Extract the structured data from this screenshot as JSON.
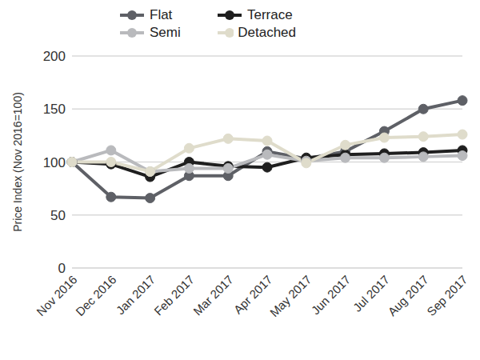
{
  "chart_data": {
    "type": "line",
    "y_label": "Price Index (Nov 2016=100)",
    "categories": [
      "Nov 2016",
      "Dec 2016",
      "Jan 2017",
      "Feb 2017",
      "Mar 2017",
      "Apr 2017",
      "May 2017",
      "Jun 2017",
      "Jul 2017",
      "Aug 2017",
      "Sep 2017"
    ],
    "series": [
      {
        "name": "Flat",
        "color": "#5e6066",
        "marker": "circle",
        "values": [
          100,
          67,
          66,
          87,
          87,
          110,
          103,
          110,
          129,
          150,
          158
        ]
      },
      {
        "name": "Terrace",
        "color": "#1f1f1f",
        "marker": "circle",
        "values": [
          100,
          98,
          86,
          100,
          96,
          95,
          104,
          107,
          108,
          109,
          111
        ]
      },
      {
        "name": "Semi",
        "color": "#b9babd",
        "marker": "circle",
        "values": [
          100,
          111,
          91,
          94,
          94,
          107,
          101,
          104,
          104,
          105,
          106
        ]
      },
      {
        "name": "Detached",
        "color": "#dfdccb",
        "marker": "circle",
        "values": [
          100,
          100,
          91,
          113,
          122,
          120,
          99,
          116,
          123,
          124,
          126
        ]
      }
    ],
    "ylim": [
      0,
      200
    ],
    "yticks": [
      0,
      50,
      100,
      150,
      200
    ],
    "grid": true,
    "legend": "top-left"
  }
}
